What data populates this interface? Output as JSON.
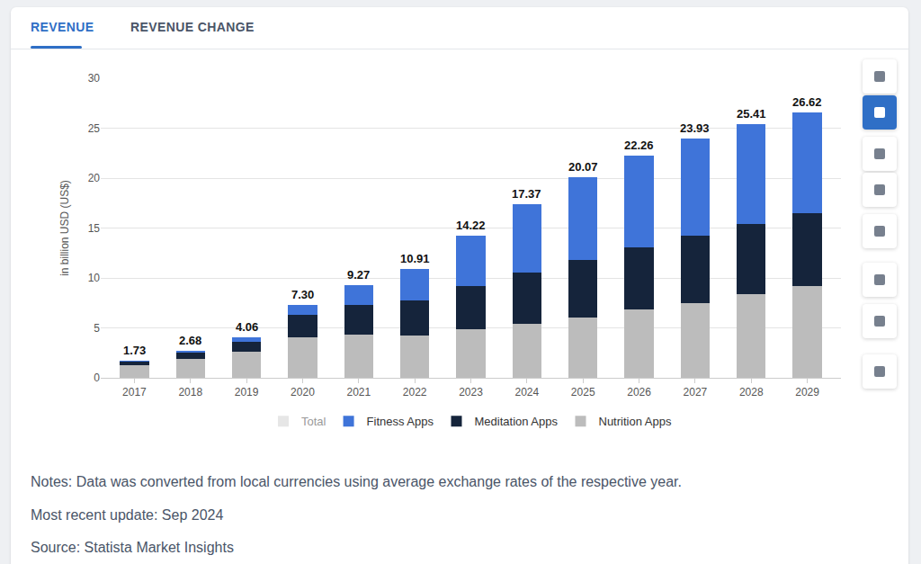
{
  "tabs": [
    "REVENUE",
    "REVENUE CHANGE"
  ],
  "chart_data": {
    "type": "bar",
    "stacked": true,
    "categories": [
      "2017",
      "2018",
      "2019",
      "2020",
      "2021",
      "2022",
      "2023",
      "2024",
      "2025",
      "2026",
      "2027",
      "2028",
      "2029"
    ],
    "series": [
      {
        "name": "Fitness Apps",
        "color": "#3f74d9",
        "values": [
          0.08,
          0.13,
          0.46,
          0.97,
          1.97,
          3.17,
          5.07,
          6.82,
          8.28,
          9.16,
          9.68,
          10.02,
          10.09
        ]
      },
      {
        "name": "Meditation Apps",
        "color": "#15243b",
        "values": [
          0.35,
          0.62,
          0.96,
          2.28,
          2.99,
          3.52,
          4.31,
          5.1,
          5.72,
          6.24,
          6.77,
          7.03,
          7.3
        ]
      },
      {
        "name": "Nutrition Apps",
        "color": "#bcbcbc",
        "values": [
          1.3,
          1.93,
          2.64,
          4.05,
          4.31,
          4.22,
          4.84,
          5.45,
          6.07,
          6.86,
          7.48,
          8.36,
          9.23
        ]
      }
    ],
    "total_name": "Total",
    "total_color": "#cfcfcf",
    "totals": [
      1.73,
      2.68,
      4.06,
      7.3,
      9.27,
      10.91,
      14.22,
      17.37,
      20.07,
      22.26,
      23.93,
      25.41,
      26.62
    ],
    "totals_labels": [
      "1.73",
      "2.68",
      "4.06",
      "7.30",
      "9.27",
      "10.91",
      "14.22",
      "17.37",
      "20.07",
      "22.26",
      "23.93",
      "25.41",
      "26.62"
    ],
    "y_label": "in billion USD (US$)",
    "ylim": [
      0,
      30
    ],
    "yticks": [
      0,
      5,
      10,
      15,
      20,
      25,
      30
    ],
    "grid": true,
    "legend": "bottom"
  },
  "notes": [
    "Notes: Data was converted from local currencies using average exchange rates of the respective year.",
    "Most recent update: Sep 2024",
    "Source: Statista Market Insights"
  ]
}
